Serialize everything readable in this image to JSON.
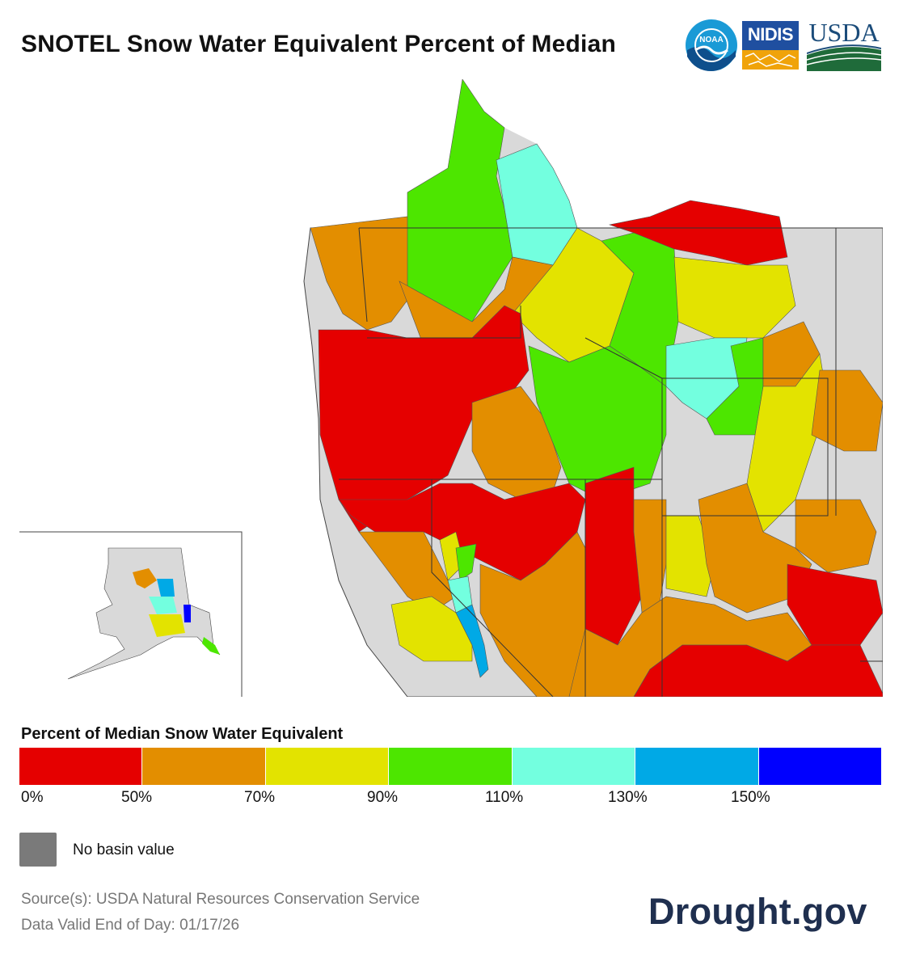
{
  "title": "SNOTEL Snow Water Equivalent Percent of Median",
  "logos": {
    "noaa": "NOAA",
    "nidis": "NIDIS",
    "usda": "USDA"
  },
  "colors": {
    "lt50": "#e50000",
    "p50_70": "#e38e00",
    "p70_90": "#e3e300",
    "p90_110": "#4de600",
    "p110_130": "#73ffdf",
    "p130_150": "#00a9e6",
    "gt150": "#0000ff",
    "nodata": "#7a7a7a",
    "land": "#d9d9d9"
  },
  "legend": {
    "title": "Percent of Median Snow Water Equivalent",
    "ticks": [
      "0%",
      "50%",
      "70%",
      "90%",
      "110%",
      "130%",
      "150%"
    ],
    "nodata_label": "No basin value"
  },
  "source": {
    "line1": "Source(s): USDA Natural Resources Conservation Service",
    "line2": "Data Valid End of Day: 01/17/26"
  },
  "brand": "Drought.gov"
}
